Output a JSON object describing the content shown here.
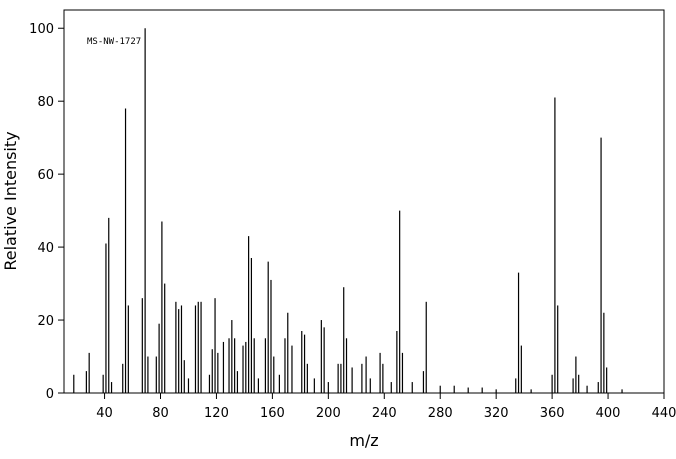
{
  "chart_data": {
    "type": "bar",
    "x_label": "m/z",
    "y_label": "Relative Intensity",
    "annotation": "MS-NW-1727",
    "color": "#000000",
    "x": [
      18,
      27,
      29,
      39,
      41,
      43,
      45,
      53,
      55,
      57,
      67,
      69,
      71,
      77,
      79,
      81,
      83,
      91,
      93,
      95,
      97,
      100,
      105,
      107,
      109,
      115,
      117,
      119,
      121,
      125,
      129,
      131,
      133,
      135,
      139,
      141,
      143,
      145,
      147,
      150,
      155,
      157,
      159,
      161,
      165,
      169,
      171,
      174,
      181,
      183,
      185,
      190,
      195,
      197,
      200,
      207,
      209,
      211,
      213,
      217,
      224,
      227,
      230,
      237,
      239,
      245,
      249,
      251,
      253,
      260,
      268,
      270,
      280,
      290,
      300,
      310,
      320,
      334,
      336,
      338,
      345,
      360,
      362,
      364,
      375,
      377,
      379,
      385,
      393,
      395,
      397,
      399,
      410
    ],
    "values": [
      5,
      6,
      11,
      5,
      41,
      48,
      3,
      8,
      78,
      24,
      26,
      100,
      10,
      10,
      19,
      47,
      30,
      25,
      23,
      24,
      9,
      4,
      24,
      25,
      25,
      5,
      12,
      26,
      11,
      14,
      15,
      20,
      15,
      6,
      13,
      14,
      43,
      37,
      15,
      4,
      15,
      36,
      31,
      10,
      5,
      15,
      22,
      13,
      17,
      16,
      8,
      4,
      20,
      18,
      3,
      8,
      8,
      29,
      15,
      7,
      8,
      10,
      4,
      11,
      8,
      3,
      17,
      50,
      11,
      3,
      6,
      25,
      2,
      2,
      1.5,
      1.5,
      1,
      4,
      33,
      13,
      1,
      5,
      81,
      24,
      4,
      10,
      5,
      2,
      3,
      70,
      22,
      7,
      1
    ],
    "xlim": [
      11,
      440
    ],
    "xticks": [
      40,
      80,
      120,
      160,
      200,
      240,
      280,
      320,
      360,
      400,
      440
    ],
    "ylim": [
      0,
      105
    ],
    "yticks": [
      0,
      20,
      40,
      60,
      80,
      100
    ]
  }
}
